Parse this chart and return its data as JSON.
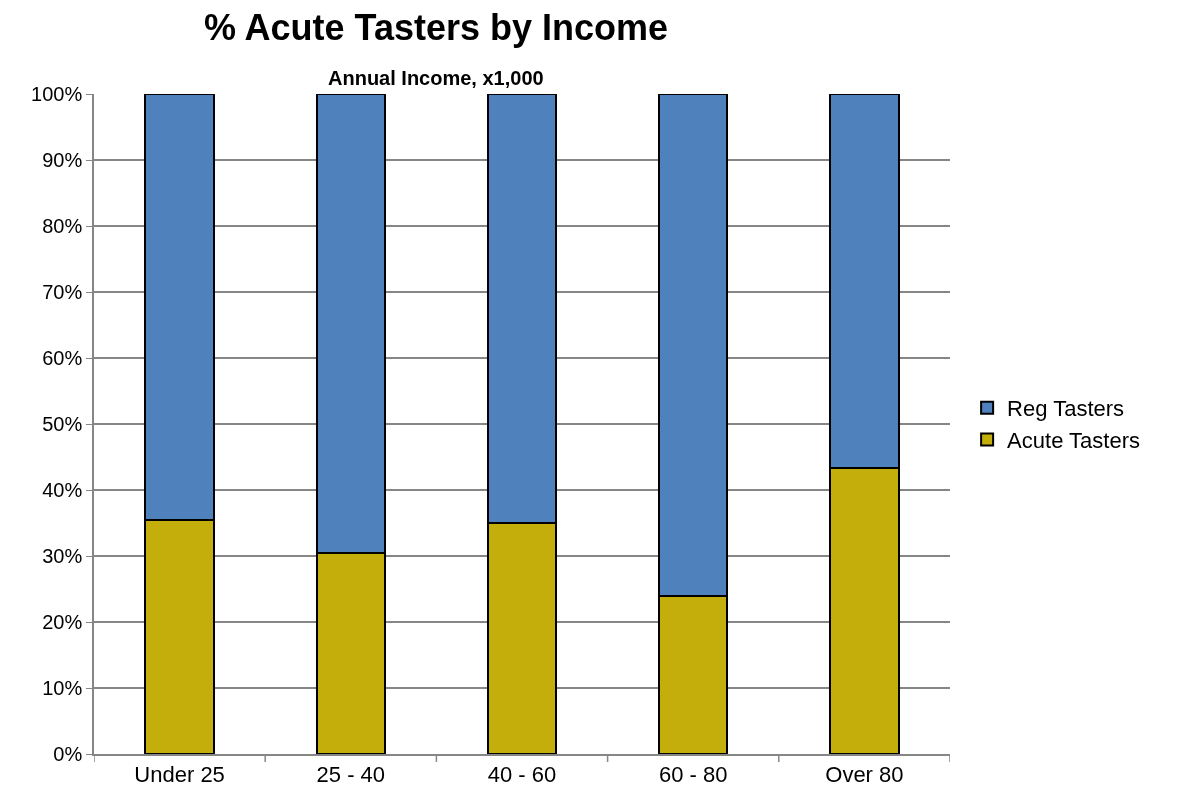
{
  "chart_data": {
    "type": "bar",
    "title": "% Acute Tasters by Income",
    "subtitle": "Annual Income, x1,000",
    "categories": [
      "Under 25",
      "25 - 40",
      "40 - 60",
      "60 - 80",
      "Over 80"
    ],
    "series": [
      {
        "name": "Acute Tasters",
        "color": "#c4ae0c",
        "values": [
          35.5,
          30.5,
          35,
          24,
          43.3
        ]
      },
      {
        "name": "Reg Tasters",
        "color": "#4f81bd",
        "values": [
          64.5,
          69.5,
          65,
          76,
          56.7
        ]
      }
    ],
    "stacked": true,
    "ylim": [
      0,
      100
    ],
    "yticks": [
      {
        "value": 0,
        "label": "0%"
      },
      {
        "value": 10,
        "label": "10%"
      },
      {
        "value": 20,
        "label": "20%"
      },
      {
        "value": 30,
        "label": "30%"
      },
      {
        "value": 40,
        "label": "40%"
      },
      {
        "value": 50,
        "label": "50%"
      },
      {
        "value": 60,
        "label": "60%"
      },
      {
        "value": 70,
        "label": "70%"
      },
      {
        "value": 80,
        "label": "80%"
      },
      {
        "value": 90,
        "label": "90%"
      },
      {
        "value": 100,
        "label": "100%"
      }
    ],
    "grid": "y",
    "legend": "right"
  }
}
